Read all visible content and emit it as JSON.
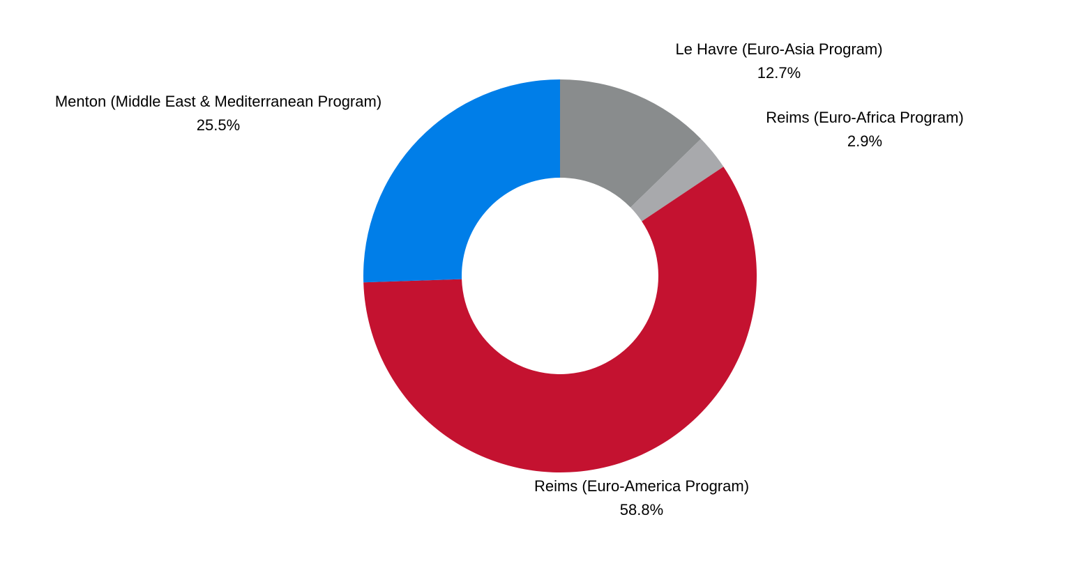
{
  "chart_data": {
    "type": "pie",
    "style": "donut",
    "start_angle_deg": 0,
    "direction": "clockwise",
    "slices": [
      {
        "label": "Le Havre (Euro-Asia Program)",
        "value": 12.7,
        "display": "12.7%",
        "color": "#898c8d"
      },
      {
        "label": "Reims (Euro-Africa Program)",
        "value": 2.9,
        "display": "2.9%",
        "color": "#a8a9ac"
      },
      {
        "label": "Reims (Euro-America Program)",
        "value": 58.8,
        "display": "58.8%",
        "color": "#c41230"
      },
      {
        "label": "Menton (Middle East & Mediterranean Program)",
        "value": 25.5,
        "display": "25.5%",
        "color": "#007ee8"
      }
    ],
    "legend": "none",
    "grid": false
  }
}
